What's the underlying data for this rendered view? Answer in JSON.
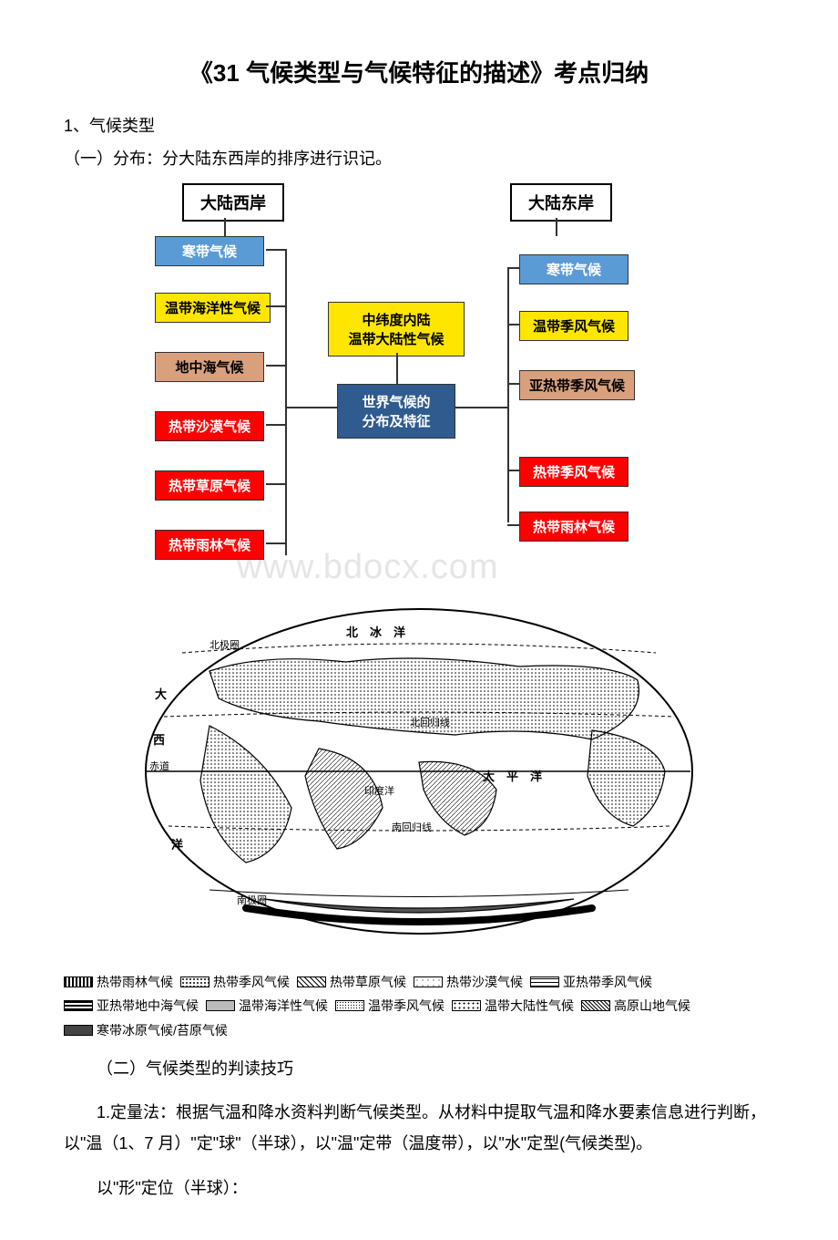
{
  "title": "《31 气候类型与气候特征的描述》考点归纳",
  "point1": "1、气候类型",
  "point1a": "（一）分布：分大陆东西岸的排序进行识记。",
  "watermark": "www.bdocx.com",
  "diagram": {
    "west_header": "大陆西岸",
    "east_header": "大陆东岸",
    "west": [
      {
        "label": "寒带气候",
        "bg": "#5b9bd5",
        "fg": "#ffffff"
      },
      {
        "label": "温带海洋性气候",
        "bg": "#ffe600",
        "fg": "#000000"
      },
      {
        "label": "地中海气候",
        "bg": "#d9a07d",
        "fg": "#000000"
      },
      {
        "label": "热带沙漠气候",
        "bg": "#ff0000",
        "fg": "#ffffff"
      },
      {
        "label": "热带草原气候",
        "bg": "#ff0000",
        "fg": "#ffffff"
      },
      {
        "label": "热带雨林气候",
        "bg": "#ff0000",
        "fg": "#ffffff"
      }
    ],
    "east": [
      {
        "label": "寒带气候",
        "bg": "#5b9bd5",
        "fg": "#ffffff"
      },
      {
        "label": "温带季风气候",
        "bg": "#ffe600",
        "fg": "#000000"
      },
      {
        "label": "亚热带季风气候",
        "bg": "#d9a07d",
        "fg": "#000000"
      },
      {
        "label": "热带季风气候",
        "bg": "#ff0000",
        "fg": "#ffffff"
      },
      {
        "label": "热带雨林气候",
        "bg": "#ff0000",
        "fg": "#ffffff"
      }
    ],
    "center_top": {
      "line1": "中纬度内陆",
      "line2": "温带大陆性气候",
      "bg": "#ffe600",
      "fg": "#000000"
    },
    "center_mid": {
      "line1": "世界气候的",
      "line2": "分布及特征",
      "bg": "#2f5b8e",
      "fg": "#ffffff"
    }
  },
  "map": {
    "labels": {
      "arctic": "北极圈",
      "arctic_ocean": "北　冰　洋",
      "n_tropic": "北回归线",
      "equator": "赤道",
      "s_tropic": "南回归线",
      "antarctic": "南极圈",
      "pacific": "太　平　洋",
      "indian": "印度洋",
      "da": "大",
      "xi": "西",
      "yang": "洋"
    }
  },
  "legend": {
    "items": [
      {
        "label": "热带雨林气候",
        "pattern": "vstripe"
      },
      {
        "label": "热带季风气候",
        "pattern": "dot"
      },
      {
        "label": "热带草原气候",
        "pattern": "diag"
      },
      {
        "label": "热带沙漠气候",
        "pattern": "sparse"
      },
      {
        "label": "亚热带季风气候",
        "pattern": "grid"
      },
      {
        "label": "亚热带地中海气候",
        "pattern": "hstripe"
      },
      {
        "label": "温带海洋性气候",
        "pattern": "gray"
      },
      {
        "label": "温带季风气候",
        "pattern": "fine"
      },
      {
        "label": "温带大陆性气候",
        "pattern": "dot2"
      },
      {
        "label": "高原山地气候",
        "pattern": "cross"
      },
      {
        "label": "寒带冰原气候/苔原气候",
        "pattern": "dark"
      }
    ]
  },
  "point1b": "（二）气候类型的判读技巧",
  "para1": "1.定量法：根据气温和降水资料判断气候类型。从材料中提取气温和降水要素信息进行判断，以\"温（1、7 月）\"定\"球\"（半球），以\"温\"定带（温度带），以\"水\"定型(气候类型)。",
  "para2": "以\"形\"定位（半球）："
}
